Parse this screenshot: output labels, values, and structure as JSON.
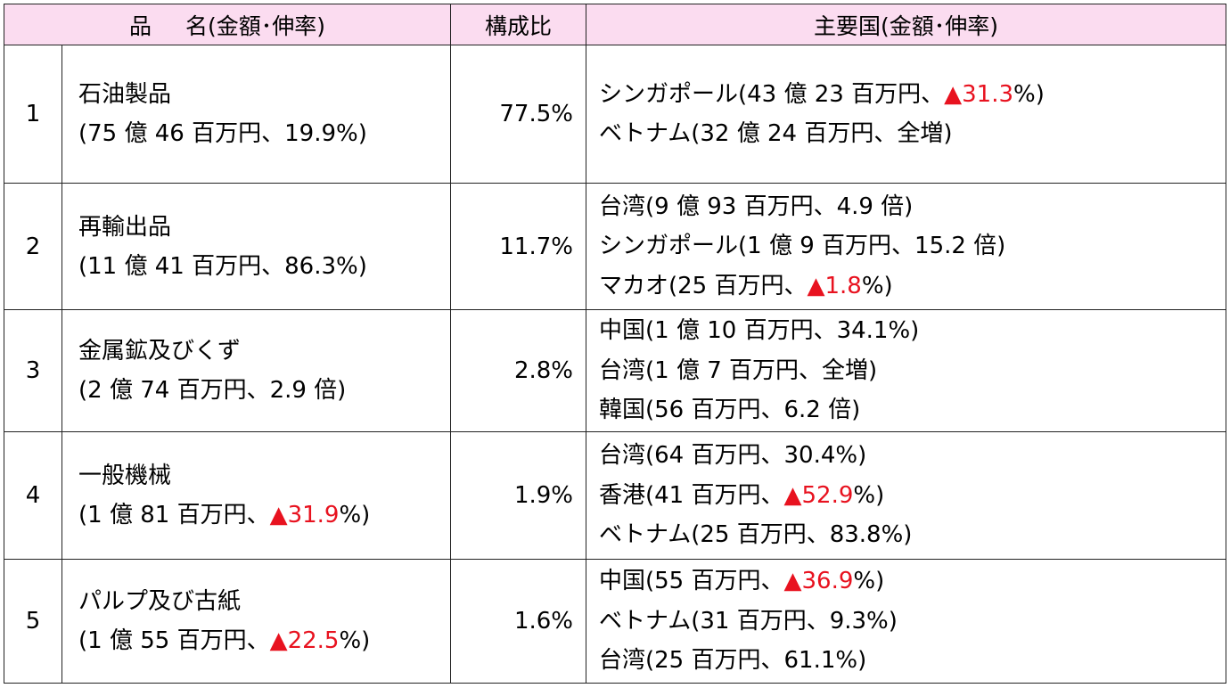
{
  "header": {
    "name_a": "品",
    "name_b": "名(金額･伸率)",
    "ratio": "構成比",
    "countries": "主要国(金額･伸率)"
  },
  "rows": [
    {
      "num": "1",
      "item": "石油製品",
      "detail": {
        "pre": "(75 億 46 百万円、19.9%)",
        "neg": "",
        "post": ""
      },
      "ratio": "77.5%",
      "countries": [
        {
          "pre": "シンガポール(43 億 23 百万円、",
          "neg": "▲31.3",
          "post": "%)"
        },
        {
          "pre": "ベトナム(32 億 24 百万円、全増)",
          "neg": "",
          "post": ""
        }
      ]
    },
    {
      "num": "2",
      "item": "再輸出品",
      "detail": {
        "pre": "(11 億 41 百万円、86.3%)",
        "neg": "",
        "post": ""
      },
      "ratio": "11.7%",
      "countries": [
        {
          "pre": "台湾(9 億 93 百万円、4.9 倍)",
          "neg": "",
          "post": ""
        },
        {
          "pre": "シンガポール(1 億 9 百万円、15.2 倍)",
          "neg": "",
          "post": ""
        },
        {
          "pre": "マカオ(25 百万円、",
          "neg": "▲1.8",
          "post": "%)"
        }
      ]
    },
    {
      "num": "3",
      "item": "金属鉱及びくず",
      "detail": {
        "pre": "(2 億 74 百万円、2.9 倍)",
        "neg": "",
        "post": ""
      },
      "ratio": "2.8%",
      "countries": [
        {
          "pre": "中国(1 億 10 百万円、34.1%)",
          "neg": "",
          "post": ""
        },
        {
          "pre": "台湾(1 億 7 百万円、全増)",
          "neg": "",
          "post": ""
        },
        {
          "pre": "韓国(56 百万円、6.2 倍)",
          "neg": "",
          "post": ""
        }
      ]
    },
    {
      "num": "4",
      "item": "一般機械",
      "detail": {
        "pre": "(1 億 81 百万円、",
        "neg": "▲31.9",
        "post": "%)"
      },
      "ratio": "1.9%",
      "countries": [
        {
          "pre": "台湾(64 百万円、30.4%)",
          "neg": "",
          "post": ""
        },
        {
          "pre": "香港(41 百万円、",
          "neg": "▲52.9",
          "post": "%)"
        },
        {
          "pre": "ベトナム(25 百万円、83.8%)",
          "neg": "",
          "post": ""
        }
      ]
    },
    {
      "num": "5",
      "item": "パルプ及び古紙",
      "detail": {
        "pre": "(1 億 55 百万円、",
        "neg": "▲22.5",
        "post": "%)"
      },
      "ratio": "1.6%",
      "countries": [
        {
          "pre": "中国(55 百万円、",
          "neg": "▲36.9",
          "post": "%)"
        },
        {
          "pre": "ベトナム(31 百万円、9.3%)",
          "neg": "",
          "post": ""
        },
        {
          "pre": "台湾(25 百万円、61.1%)",
          "neg": "",
          "post": ""
        }
      ]
    }
  ]
}
